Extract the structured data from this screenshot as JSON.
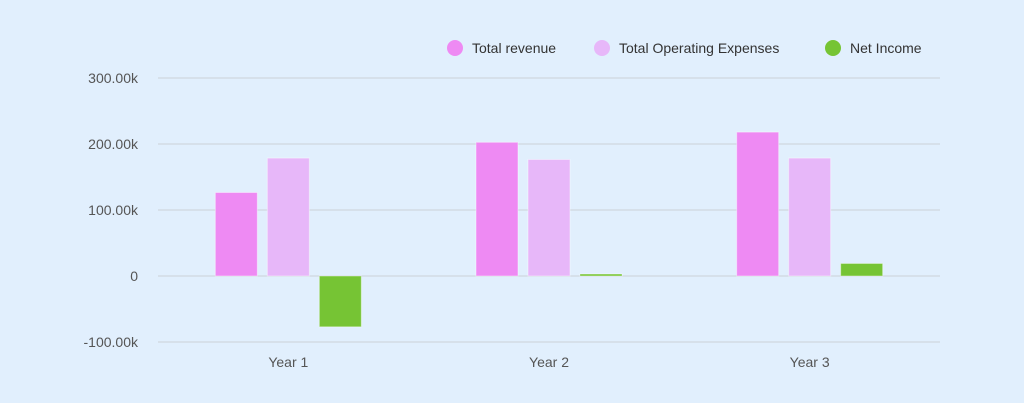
{
  "chart_data": {
    "type": "bar",
    "title": "",
    "xlabel": "",
    "ylabel": "",
    "categories": [
      "Year 1",
      "Year 2",
      "Year 3"
    ],
    "ylim": [
      -100000,
      300000
    ],
    "yticks": [
      -100000,
      0,
      100000,
      200000,
      300000
    ],
    "ytick_labels": [
      "-100.00k",
      "0",
      "100.00k",
      "200.00k",
      "300.00k"
    ],
    "grid": true,
    "legend_position": "top-right",
    "series": [
      {
        "name": "Total revenue",
        "color": "#ee8af3",
        "values": [
          126500,
          202600,
          218000
        ]
      },
      {
        "name": "Total Operating Expenses",
        "color": "#e7b7f9",
        "values": [
          178600,
          176500,
          178600
        ]
      },
      {
        "name": "Net Income",
        "color": "#76c434",
        "values": [
          -77000,
          3000,
          19000
        ]
      }
    ],
    "background": "#e1effd"
  }
}
